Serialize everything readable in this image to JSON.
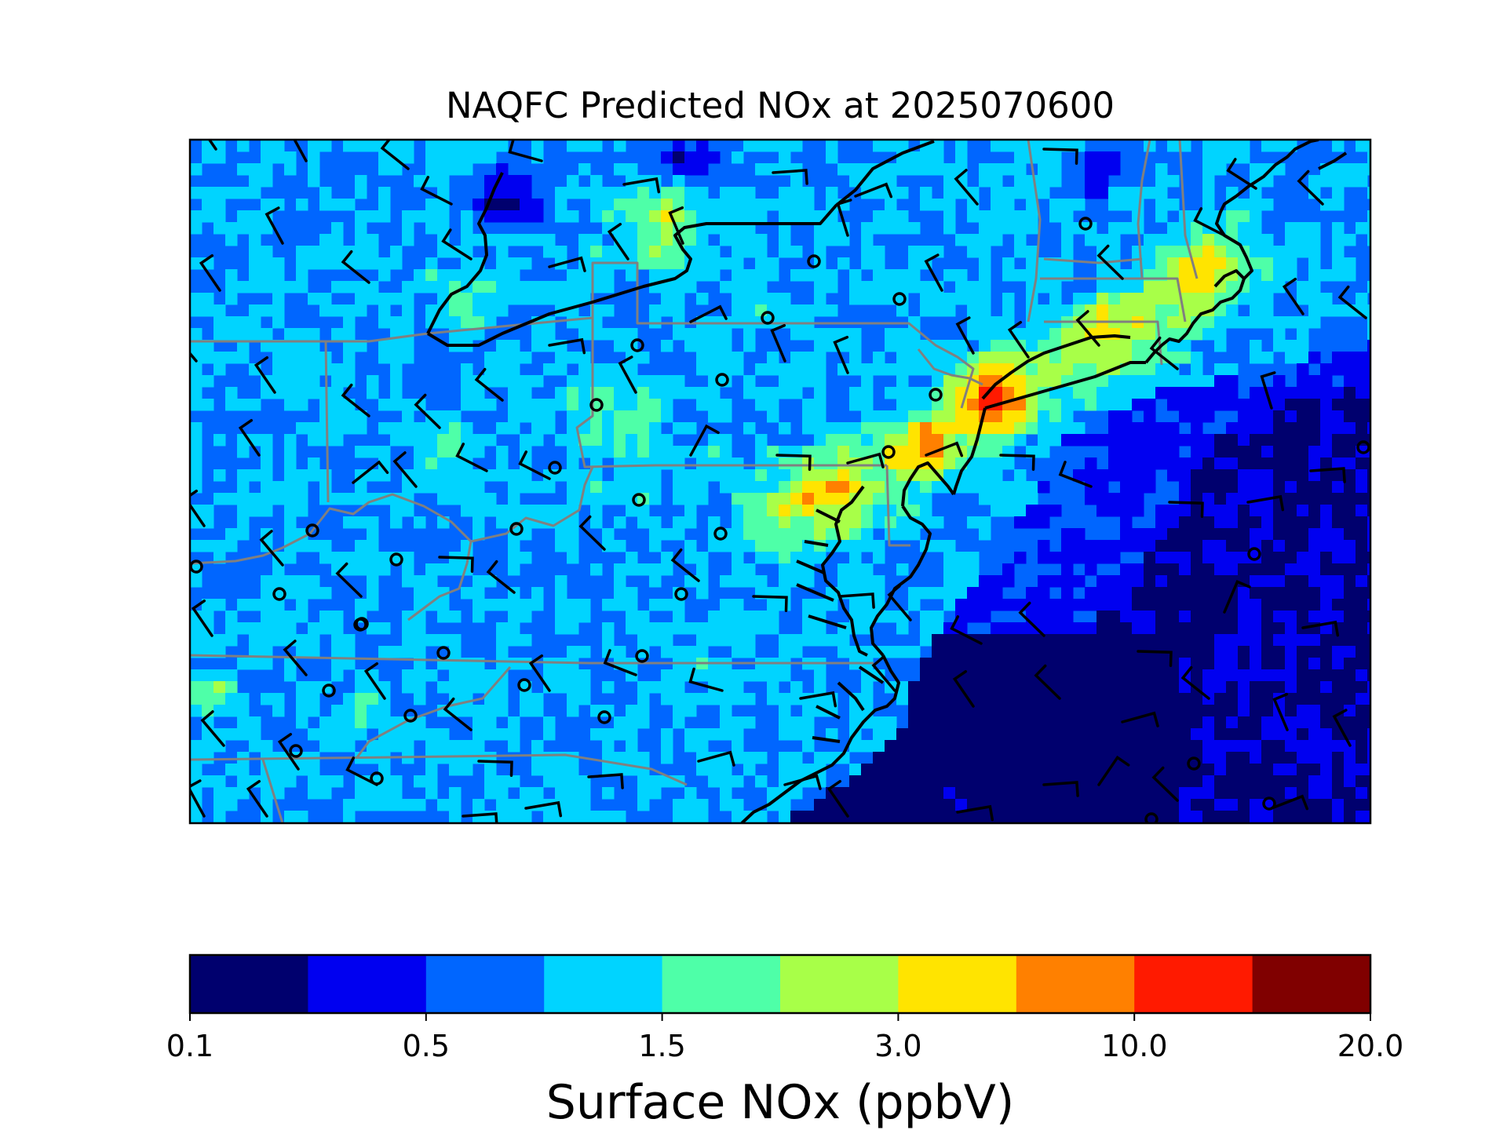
{
  "title": "NAQFC Predicted NOx at 2025070600",
  "colorbar": {
    "label": "Surface NOx (ppbV)",
    "tick_labels": [
      "0.1",
      "0.5",
      "1.5",
      "3.0",
      "10.0",
      "20.0"
    ],
    "colors": [
      "#00006e",
      "#0000f0",
      "#0066ff",
      "#00d4ff",
      "#4effa8",
      "#a8ff48",
      "#ffe400",
      "#ff8000",
      "#ff1a00",
      "#800000"
    ]
  },
  "map": {
    "region": "US Mid-Atlantic and Northeast",
    "state_border_color": "#808080",
    "coastline_color": "#000000",
    "ocean_color": "#00006e"
  },
  "colors": {
    "frame": "#000000",
    "wind_barb": "#000000"
  }
}
